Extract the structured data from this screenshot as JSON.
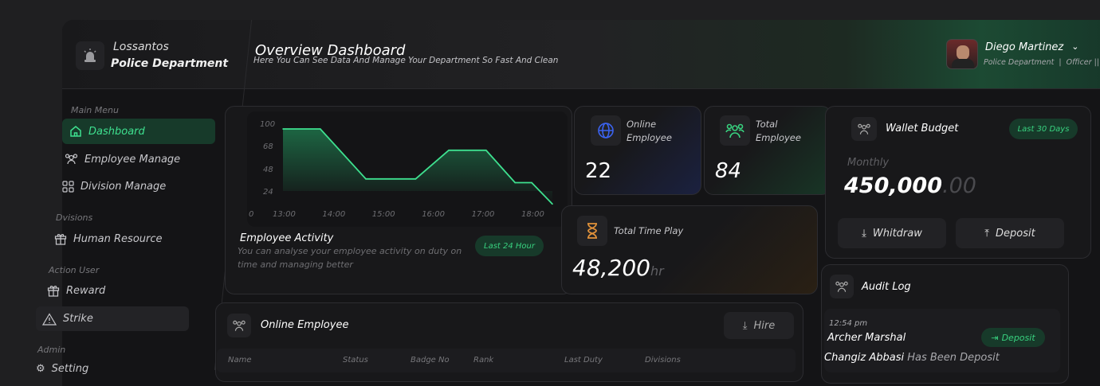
{
  "brand": {
    "line1": "Lossantos",
    "line2": "Police Department",
    "icon": "siren-icon"
  },
  "header": {
    "title": "Overview Dashboard",
    "subtitle": "Here You Can See Data And Manage Your Department So Fast And Clean"
  },
  "user": {
    "name": "Diego Martinez",
    "department": "Police Department",
    "separator": "|",
    "rank": "Officer ||"
  },
  "sidebar": {
    "sections": [
      {
        "title": "Main Menu",
        "items": [
          {
            "label": "Dashboard",
            "icon": "home-icon",
            "active": true
          },
          {
            "label": "Employee Manage",
            "icon": "users-icon"
          },
          {
            "label": "Division Manage",
            "icon": "grid-icon"
          }
        ]
      },
      {
        "title": "Dvisions",
        "items": [
          {
            "label": "Human Resource",
            "icon": "gift-icon"
          }
        ]
      },
      {
        "title": "Action User",
        "items": [
          {
            "label": "Reward",
            "icon": "gift-icon"
          },
          {
            "label": "Strike",
            "icon": "warning-icon",
            "highlighted": true
          }
        ]
      },
      {
        "title": "Admin",
        "items": [
          {
            "label": "Setting",
            "icon": "gear-icon"
          }
        ]
      }
    ]
  },
  "activity": {
    "title": "Employee Activity",
    "description": "You can analyse your employee activity on duty on time and managing better",
    "badge": "Last 24 Hour"
  },
  "chart_data": {
    "type": "area",
    "y_ticks": [
      "100",
      "68",
      "48",
      "24",
      "0"
    ],
    "x_ticks": [
      "13:00",
      "14:00",
      "15:00",
      "16:00",
      "17:00",
      "18:00"
    ],
    "x": [
      "13:00",
      "13:45",
      "14:40",
      "15:40",
      "16:20",
      "17:05",
      "17:40",
      "18:00",
      "18:25"
    ],
    "values": [
      92,
      92,
      37,
      37,
      64,
      64,
      33,
      33,
      10
    ],
    "color": "#3ee08f",
    "grid": false
  },
  "stats": {
    "online": {
      "label_line1": "Online",
      "label_line2": "Employee",
      "value": "22",
      "icon": "globe-icon",
      "color": "#3b63f0"
    },
    "total": {
      "label_line1": "Total",
      "label_line2": "Employee",
      "value": "84",
      "icon": "users-icon",
      "color": "#38d17f"
    },
    "time": {
      "label": "Total Time Play",
      "value": "48,200",
      "unit": "hr",
      "icon": "hourglass-icon",
      "color": "#e0913a"
    }
  },
  "wallet": {
    "title": "Wallet Budget",
    "badge": "Last 30 Days",
    "period": "Monthly",
    "amount": "450,000",
    "decimals": ".00",
    "withdraw": "Whitdraw",
    "deposit": "Deposit"
  },
  "audit": {
    "title": "Audit Log",
    "entries": [
      {
        "time": "12:54 pm",
        "name": "Archer Marshal",
        "action": "Deposit",
        "actor": "Changiz Abbasi",
        "message": "Has Been Deposit"
      }
    ]
  },
  "online_table": {
    "title": "Online Employee",
    "hire": "Hire",
    "columns": [
      "Name",
      "Status",
      "Badge No",
      "Rank",
      "Last Duty",
      "Divisions"
    ]
  }
}
